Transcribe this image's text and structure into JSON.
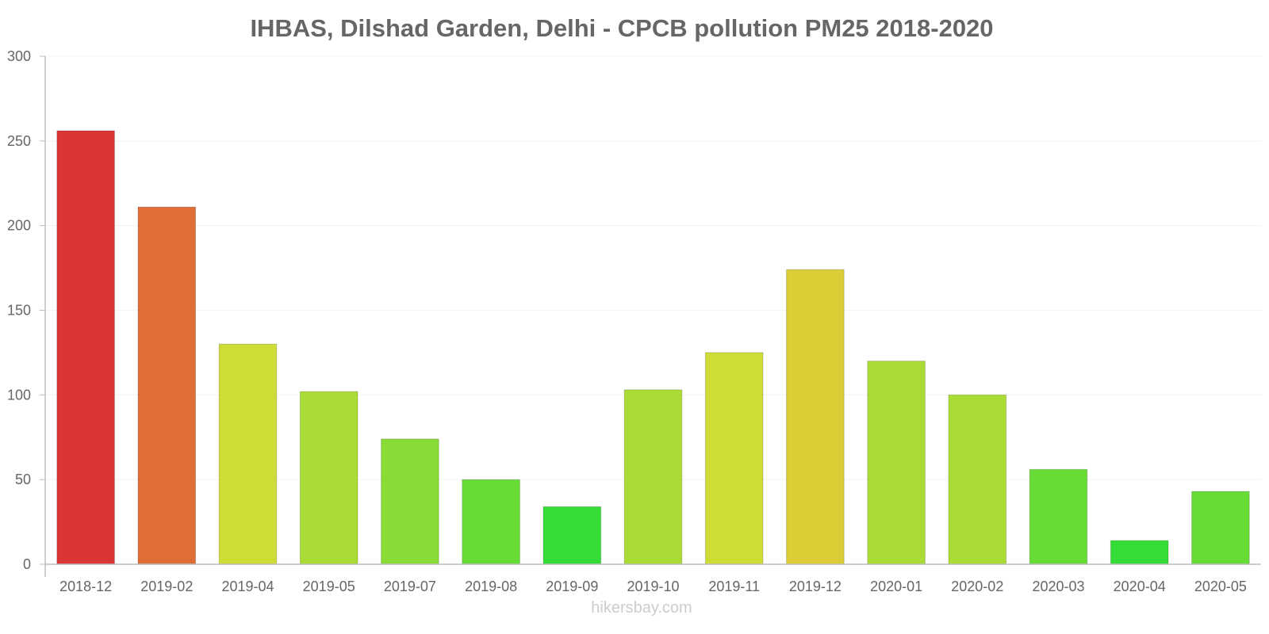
{
  "chart_data": {
    "type": "bar",
    "title": "IHBAS, Dilshad Garden, Delhi - CPCB pollution PM25 2018-2020",
    "xlabel": "",
    "ylabel": "",
    "ylim": [
      0,
      300
    ],
    "yticks": [
      0,
      50,
      100,
      150,
      200,
      250,
      300
    ],
    "categories": [
      "2018-12",
      "2019-02",
      "2019-04",
      "2019-05",
      "2019-07",
      "2019-08",
      "2019-09",
      "2019-10",
      "2019-11",
      "2019-12",
      "2020-01",
      "2020-02",
      "2020-03",
      "2020-04",
      "2020-05"
    ],
    "values": [
      256,
      211,
      130,
      102,
      74,
      50,
      34,
      103,
      125,
      174,
      120,
      100,
      56,
      14,
      43
    ],
    "colors": [
      "#dc3535",
      "#de6e35",
      "#cfdc35",
      "#abdc35",
      "#89dc35",
      "#67dc35",
      "#35dc35",
      "#abdc35",
      "#cfdc35",
      "#dccc35",
      "#abdc35",
      "#abdc35",
      "#67dc35",
      "#35dc35",
      "#67dc35"
    ],
    "legend": "none",
    "grid": true
  },
  "watermark": "hikersbay.com"
}
